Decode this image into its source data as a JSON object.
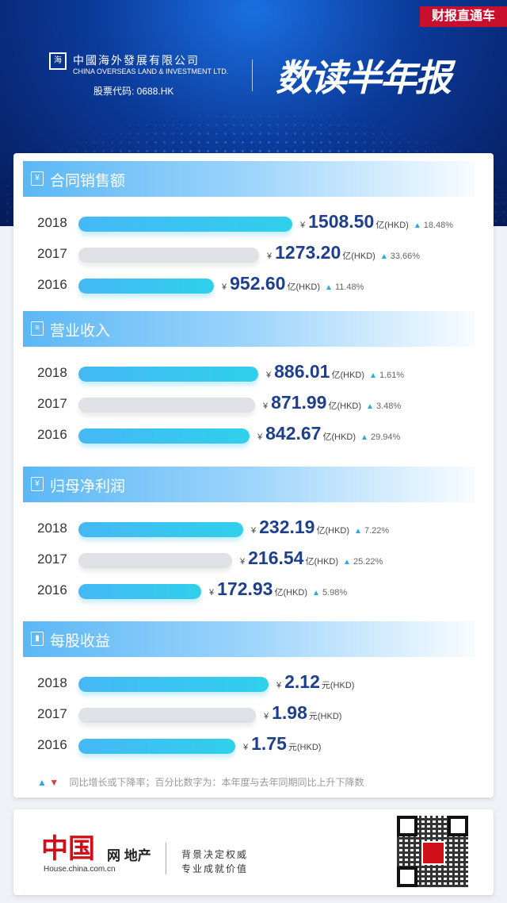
{
  "header": {
    "tag": "财报直通车",
    "company_cn": "中國海外發展有限公司",
    "company_en": "CHINA OVERSEAS LAND & INVESTMENT LTD.",
    "stock_code": "股票代码: 0688.HK",
    "column_title": "数读半年报",
    "logo_mark": "海"
  },
  "colors": {
    "current_bar": "#3fc0f0",
    "prior_bar": "#dfe1e6",
    "value_text": "#1e3f8e",
    "up": "#2aa7e8",
    "down": "#e23b3b",
    "tag_bg": "#c8102e"
  },
  "sections": [
    {
      "title": "合同销售额",
      "icon": "¥",
      "rows": [
        {
          "year": "2018",
          "yen": "¥",
          "value": "1508.50",
          "unit": "亿(HKD)",
          "change": "18.48%"
        },
        {
          "year": "2017",
          "yen": "¥",
          "value": "1273.20",
          "unit": "亿(HKD)",
          "change": "33.66%"
        },
        {
          "year": "2016",
          "yen": "¥",
          "value": "952.60",
          "unit": "亿(HKD)",
          "change": "11.48%"
        }
      ]
    },
    {
      "title": "营业收入",
      "icon": "≡",
      "rows": [
        {
          "year": "2018",
          "yen": "¥",
          "value": "886.01",
          "unit": "亿(HKD)",
          "change": "1.61%"
        },
        {
          "year": "2017",
          "yen": "¥",
          "value": "871.99",
          "unit": "亿(HKD)",
          "change": "3.48%"
        },
        {
          "year": "2016",
          "yen": "¥",
          "value": "842.67",
          "unit": "亿(HKD)",
          "change": "29.94%"
        }
      ]
    },
    {
      "title": "归母净利润",
      "icon": "¥",
      "rows": [
        {
          "year": "2018",
          "yen": "¥",
          "value": "232.19",
          "unit": "亿(HKD)",
          "change": "7.22%"
        },
        {
          "year": "2017",
          "yen": "¥",
          "value": "216.54",
          "unit": "亿(HKD)",
          "change": "25.22%"
        },
        {
          "year": "2016",
          "yen": "¥",
          "value": "172.93",
          "unit": "亿(HKD)",
          "change": "5.98%"
        }
      ]
    },
    {
      "title": "每股收益",
      "icon": "▮",
      "rows": [
        {
          "year": "2018",
          "yen": "¥",
          "value": "2.12",
          "unit": "元(HKD)",
          "change": ""
        },
        {
          "year": "2017",
          "yen": "¥",
          "value": "1.98",
          "unit": "元(HKD)",
          "change": ""
        },
        {
          "year": "2016",
          "yen": "¥",
          "value": "1.75",
          "unit": "元(HKD)",
          "change": ""
        }
      ]
    }
  ],
  "legend": {
    "up_symbol": "▲",
    "down_symbol": "▼",
    "text": "同比增长或下降率；百分比数字为：本年度与去年同期同比上升下降数"
  },
  "footer": {
    "logo_text": "中国",
    "logo_suffix": "网 地产",
    "url": "House.china.com.cn",
    "slogan_1": "背景决定权威",
    "slogan_2": "专业成就价值"
  },
  "chart_data": [
    {
      "type": "bar",
      "title": "合同销售额",
      "categories": [
        "2018",
        "2017",
        "2016"
      ],
      "values": [
        1508.5,
        1273.2,
        952.6
      ],
      "unit": "亿(HKD)",
      "yoy_change_pct": [
        18.48,
        33.66,
        11.48
      ]
    },
    {
      "type": "bar",
      "title": "营业收入",
      "categories": [
        "2018",
        "2017",
        "2016"
      ],
      "values": [
        886.01,
        871.99,
        842.67
      ],
      "unit": "亿(HKD)",
      "yoy_change_pct": [
        1.61,
        3.48,
        29.94
      ]
    },
    {
      "type": "bar",
      "title": "归母净利润",
      "categories": [
        "2018",
        "2017",
        "2016"
      ],
      "values": [
        232.19,
        216.54,
        172.93
      ],
      "unit": "亿(HKD)",
      "yoy_change_pct": [
        7.22,
        25.22,
        5.98
      ]
    },
    {
      "type": "bar",
      "title": "每股收益",
      "categories": [
        "2018",
        "2017",
        "2016"
      ],
      "values": [
        2.12,
        1.98,
        1.75
      ],
      "unit": "元(HKD)"
    }
  ]
}
